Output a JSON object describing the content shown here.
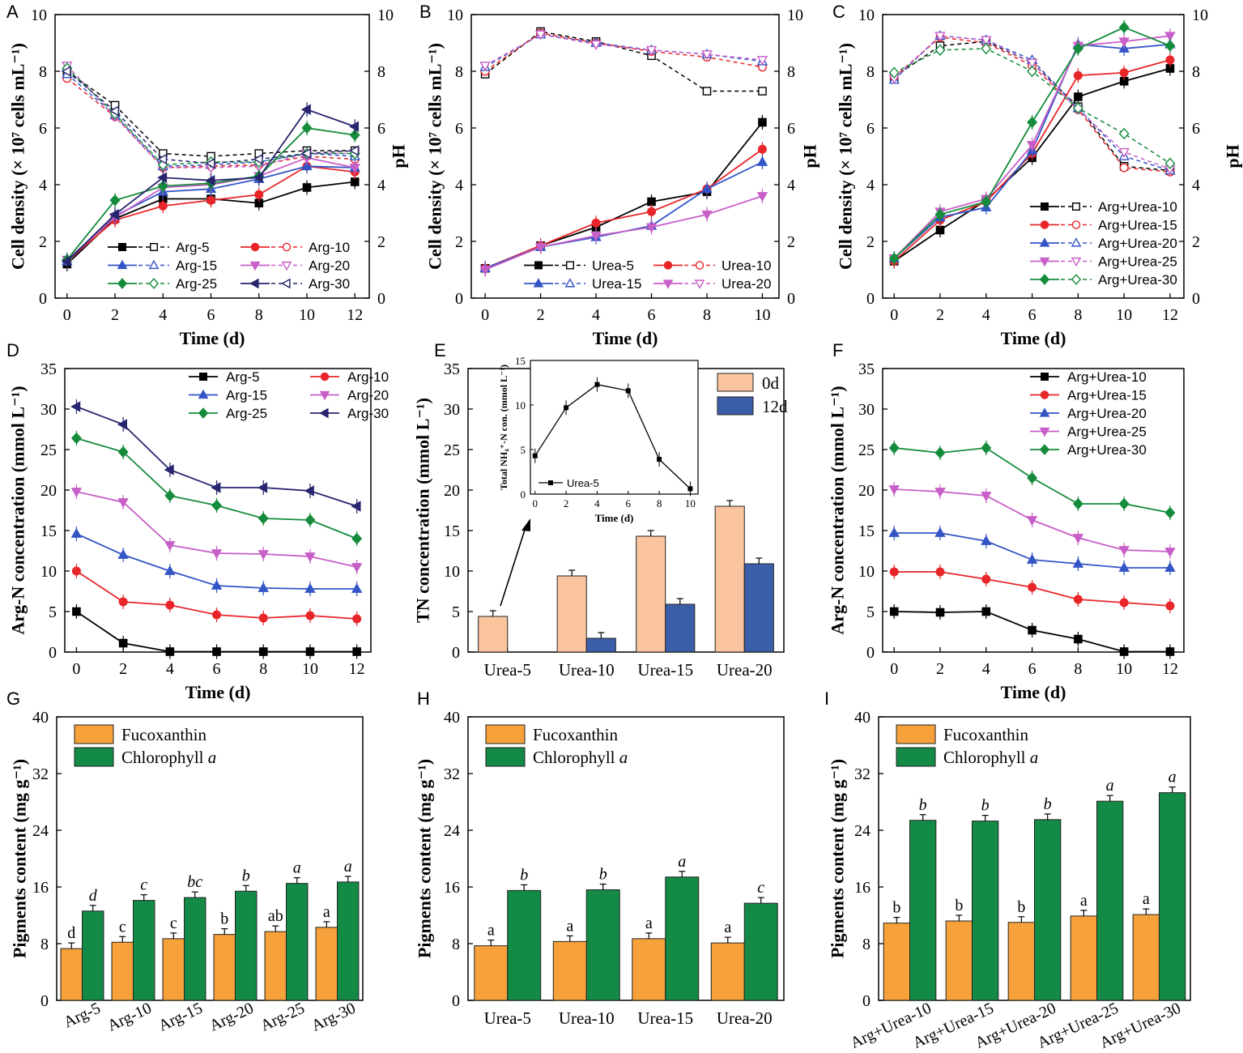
{
  "figure": {
    "colors": {
      "black": "#000000",
      "red": "#e8262a",
      "blue": "#3455c6",
      "magenta": "#c85fc8",
      "green": "#148c3c",
      "navy": "#26256e",
      "orange": "#f7a13a",
      "bargreen": "#138a45",
      "peach": "#f9c49e",
      "steelblue": "#3a5fa8"
    }
  },
  "chart_data": [
    {
      "id": "A",
      "panel_letter": "A",
      "type": "line",
      "ylabel": "Cell density (× 10⁷ cells mL⁻¹)",
      "y2label": "pH",
      "xlabel": "Time (d)",
      "ylim": [
        0,
        10
      ],
      "y2lim": [
        0,
        10
      ],
      "xlim": [
        -0.5,
        12.6
      ],
      "x": [
        0,
        2,
        4,
        6,
        8,
        10,
        12
      ],
      "legend": {
        "position": "bottom-right",
        "columns": 2
      },
      "series": [
        {
          "name": "Arg-5",
          "color": "black",
          "marker": "square",
          "cell": [
            1.2,
            2.8,
            3.5,
            3.5,
            3.35,
            3.9,
            4.1
          ],
          "ph": [
            8.0,
            6.8,
            5.1,
            5.0,
            5.1,
            5.2,
            5.2
          ]
        },
        {
          "name": "Arg-10",
          "color": "red",
          "marker": "circle",
          "cell": [
            1.3,
            2.75,
            3.25,
            3.45,
            3.65,
            4.65,
            4.45
          ],
          "ph": [
            7.75,
            6.4,
            4.6,
            4.65,
            4.7,
            5.0,
            4.9
          ]
        },
        {
          "name": "Arg-15",
          "color": "blue",
          "marker": "triangle-up",
          "cell": [
            1.3,
            2.9,
            3.75,
            3.85,
            4.2,
            4.65,
            4.6
          ],
          "ph": [
            7.9,
            6.45,
            4.65,
            4.7,
            4.8,
            5.1,
            5.0
          ]
        },
        {
          "name": "Arg-20",
          "color": "magenta",
          "marker": "triangle-down",
          "cell": [
            1.35,
            2.85,
            3.9,
            4.0,
            4.3,
            4.95,
            4.6
          ],
          "ph": [
            8.2,
            6.4,
            4.6,
            4.6,
            4.65,
            5.1,
            5.1
          ]
        },
        {
          "name": "Arg-25",
          "color": "green",
          "marker": "diamond",
          "cell": [
            1.35,
            3.45,
            3.95,
            4.05,
            4.3,
            6.0,
            5.75
          ],
          "ph": [
            8.1,
            6.5,
            4.7,
            4.8,
            4.8,
            5.1,
            5.1
          ]
        },
        {
          "name": "Arg-30",
          "color": "navy",
          "marker": "triangle-left",
          "cell": [
            1.3,
            2.95,
            4.25,
            4.15,
            4.25,
            6.65,
            6.05
          ],
          "ph": [
            8.0,
            6.6,
            4.9,
            4.75,
            4.9,
            5.1,
            5.2
          ]
        }
      ]
    },
    {
      "id": "B",
      "panel_letter": "B",
      "type": "line",
      "ylabel": "Cell density (× 10⁷ cells mL⁻¹)",
      "y2label": "pH",
      "xlabel": "Time (d)",
      "ylim": [
        0,
        10
      ],
      "y2lim": [
        0,
        10
      ],
      "xlim": [
        -0.5,
        10.6
      ],
      "x": [
        0,
        2,
        4,
        6,
        8,
        10
      ],
      "legend": {
        "position": "bottom-right",
        "columns": 2
      },
      "series": [
        {
          "name": "Urea-5",
          "color": "black",
          "marker": "square",
          "cell": [
            1.05,
            1.85,
            2.5,
            3.4,
            3.75,
            6.2
          ],
          "ph": [
            7.9,
            9.4,
            9.05,
            8.55,
            7.3,
            7.3
          ]
        },
        {
          "name": "Urea-10",
          "color": "red",
          "marker": "circle",
          "cell": [
            1.05,
            1.85,
            2.65,
            3.05,
            3.85,
            5.25
          ],
          "ph": [
            8.0,
            9.35,
            9.0,
            8.7,
            8.5,
            8.15
          ]
        },
        {
          "name": "Urea-15",
          "color": "blue",
          "marker": "triangle-up",
          "cell": [
            1.05,
            1.8,
            2.15,
            2.55,
            3.85,
            4.8
          ],
          "ph": [
            8.15,
            9.3,
            9.0,
            8.75,
            8.6,
            8.35
          ]
        },
        {
          "name": "Urea-20",
          "color": "magenta",
          "marker": "triangle-down",
          "cell": [
            1.0,
            1.8,
            2.2,
            2.5,
            2.95,
            3.6
          ],
          "ph": [
            8.2,
            9.3,
            8.95,
            8.75,
            8.6,
            8.4
          ]
        }
      ]
    },
    {
      "id": "C",
      "panel_letter": "C",
      "type": "line",
      "ylabel": "Cell density (× 10⁷ cells mL⁻¹)",
      "y2label": "pH",
      "xlabel": "Time (d)",
      "ylim": [
        0,
        10
      ],
      "y2lim": [
        0,
        10
      ],
      "xlim": [
        -0.5,
        12.6
      ],
      "x": [
        0,
        2,
        4,
        6,
        8,
        10,
        12
      ],
      "legend": {
        "position": "bottom-right",
        "columns": 1
      },
      "series": [
        {
          "name": "Arg+Urea-10",
          "color": "black",
          "marker": "square",
          "cell": [
            1.3,
            2.4,
            3.45,
            4.95,
            7.1,
            7.65,
            8.1
          ],
          "ph": [
            7.8,
            8.9,
            9.05,
            8.3,
            6.75,
            4.65,
            4.5
          ]
        },
        {
          "name": "Arg+Urea-15",
          "color": "red",
          "marker": "circle",
          "cell": [
            1.3,
            2.75,
            3.4,
            5.1,
            7.85,
            7.95,
            8.4
          ],
          "ph": [
            7.8,
            9.2,
            9.0,
            8.2,
            6.65,
            4.6,
            4.45
          ]
        },
        {
          "name": "Arg+Urea-20",
          "color": "blue",
          "marker": "triangle-up",
          "cell": [
            1.4,
            2.85,
            3.2,
            5.2,
            8.95,
            8.8,
            8.95
          ],
          "ph": [
            7.7,
            9.25,
            9.1,
            8.4,
            6.7,
            5.0,
            4.5
          ]
        },
        {
          "name": "Arg+Urea-25",
          "color": "magenta",
          "marker": "triangle-down",
          "cell": [
            1.4,
            3.05,
            3.5,
            5.4,
            8.9,
            9.05,
            9.25
          ],
          "ph": [
            7.75,
            9.25,
            9.1,
            8.3,
            6.65,
            5.15,
            4.55
          ]
        },
        {
          "name": "Arg+Urea-30",
          "color": "green",
          "marker": "diamond",
          "cell": [
            1.4,
            2.95,
            3.4,
            6.2,
            8.8,
            9.55,
            8.9
          ],
          "ph": [
            7.95,
            8.75,
            8.8,
            8.0,
            6.7,
            5.8,
            4.75
          ]
        }
      ]
    },
    {
      "id": "D",
      "panel_letter": "D",
      "type": "line",
      "ylabel": "Arg-N concentration (mmol L⁻¹)",
      "xlabel": "Time (d)",
      "ylim": [
        0,
        35
      ],
      "xlim": [
        -0.5,
        12.6
      ],
      "x": [
        0,
        2,
        4,
        6,
        8,
        10,
        12
      ],
      "legend": {
        "position": "top-right",
        "columns": 2
      },
      "series": [
        {
          "name": "Arg-5",
          "color": "black",
          "marker": "square",
          "values": [
            5.0,
            1.1,
            0.05,
            0.05,
            0.05,
            0.05,
            0.05
          ]
        },
        {
          "name": "Arg-10",
          "color": "red",
          "marker": "circle",
          "values": [
            10.0,
            6.2,
            5.8,
            4.6,
            4.2,
            4.5,
            4.1
          ]
        },
        {
          "name": "Arg-15",
          "color": "blue",
          "marker": "triangle-up",
          "values": [
            14.6,
            12.0,
            10.0,
            8.2,
            7.9,
            7.8,
            7.8
          ]
        },
        {
          "name": "Arg-20",
          "color": "magenta",
          "marker": "triangle-down",
          "values": [
            19.8,
            18.5,
            13.2,
            12.2,
            12.1,
            11.8,
            10.5
          ]
        },
        {
          "name": "Arg-25",
          "color": "green",
          "marker": "diamond",
          "values": [
            26.4,
            24.7,
            19.3,
            18.1,
            16.5,
            16.3,
            14.0
          ]
        },
        {
          "name": "Arg-30",
          "color": "navy",
          "marker": "triangle-left",
          "values": [
            30.3,
            28.1,
            22.5,
            20.3,
            20.3,
            19.9,
            18.0
          ]
        }
      ]
    },
    {
      "id": "E",
      "panel_letter": "E",
      "type": "bar",
      "ylabel": "TN concentration (mmol L⁻¹)",
      "ylim": [
        0,
        35
      ],
      "categories": [
        "Urea-5",
        "Urea-10",
        "Urea-15",
        "Urea-20"
      ],
      "legend": {
        "position": "top-right"
      },
      "series": [
        {
          "name": "0d",
          "color": "peach",
          "values": [
            4.4,
            9.4,
            14.3,
            18.0
          ]
        },
        {
          "name": "12d",
          "color": "steelblue",
          "values": [
            0,
            1.7,
            5.9,
            10.9
          ]
        }
      ],
      "inset": {
        "type": "line",
        "ylabel": "Total NH₄⁺-N con. (mmol L⁻¹)",
        "xlabel": "Time (d)",
        "ylim": [
          0,
          15
        ],
        "xlim": [
          -0.3,
          10.5
        ],
        "x": [
          0,
          2,
          4,
          6,
          8,
          10
        ],
        "series": [
          {
            "name": "Urea-5",
            "color": "black",
            "marker": "square",
            "values": [
              4.3,
              9.7,
              12.3,
              11.6,
              3.9,
              0.6
            ]
          }
        ]
      }
    },
    {
      "id": "F",
      "panel_letter": "F",
      "type": "line",
      "ylabel": "Arg-N concentration (mmol L⁻¹)",
      "xlabel": "Time (d)",
      "ylim": [
        0,
        35
      ],
      "xlim": [
        -0.5,
        12.6
      ],
      "x": [
        0,
        2,
        4,
        6,
        8,
        10,
        12
      ],
      "legend": {
        "position": "top-right",
        "columns": 1
      },
      "series": [
        {
          "name": "Arg+Urea-10",
          "color": "black",
          "marker": "square",
          "values": [
            5.0,
            4.9,
            5.0,
            2.7,
            1.6,
            0.05,
            0.05
          ]
        },
        {
          "name": "Arg+Urea-15",
          "color": "red",
          "marker": "circle",
          "values": [
            9.9,
            9.9,
            9.0,
            8.0,
            6.5,
            6.1,
            5.7
          ]
        },
        {
          "name": "Arg+Urea-20",
          "color": "blue",
          "marker": "triangle-up",
          "values": [
            14.7,
            14.7,
            13.7,
            11.4,
            10.9,
            10.4,
            10.4
          ]
        },
        {
          "name": "Arg+Urea-25",
          "color": "magenta",
          "marker": "triangle-down",
          "values": [
            20.1,
            19.8,
            19.3,
            16.3,
            14.1,
            12.6,
            12.4
          ]
        },
        {
          "name": "Arg+Urea-30",
          "color": "green",
          "marker": "diamond",
          "values": [
            25.2,
            24.6,
            25.2,
            21.5,
            18.3,
            18.3,
            17.2
          ]
        }
      ]
    },
    {
      "id": "G",
      "panel_letter": "G",
      "type": "bar",
      "ylabel": "Pigments content (mg g⁻¹)",
      "ylim": [
        0,
        40
      ],
      "yticks": [
        0,
        8,
        16,
        24,
        32,
        40
      ],
      "categories": [
        "Arg-5",
        "Arg-10",
        "Arg-15",
        "Arg-20",
        "Arg-25",
        "Arg-30"
      ],
      "rotate_labels": true,
      "legend": {
        "position": "top-left"
      },
      "series": [
        {
          "name": "Fucoxanthin",
          "color": "orange",
          "values": [
            7.3,
            8.2,
            8.7,
            9.3,
            9.7,
            10.3
          ],
          "letters": [
            "d",
            "c",
            "c",
            "b",
            "ab",
            "a"
          ]
        },
        {
          "name": "Chlorophyll a",
          "color": "bargreen",
          "values": [
            12.6,
            14.1,
            14.5,
            15.4,
            16.5,
            16.7
          ],
          "letters": [
            "d",
            "c",
            "bc",
            "b",
            "a",
            "a"
          ]
        }
      ]
    },
    {
      "id": "H",
      "panel_letter": "H",
      "type": "bar",
      "ylabel": "Pigments content (mg g⁻¹)",
      "ylim": [
        0,
        40
      ],
      "yticks": [
        0,
        8,
        16,
        24,
        32,
        40
      ],
      "categories": [
        "Urea-5",
        "Urea-10",
        "Urea-15",
        "Urea-20"
      ],
      "rotate_labels": false,
      "legend": {
        "position": "top-left"
      },
      "series": [
        {
          "name": "Fucoxanthin",
          "color": "orange",
          "values": [
            7.7,
            8.3,
            8.7,
            8.1
          ],
          "letters": [
            "a",
            "a",
            "a",
            "a"
          ]
        },
        {
          "name": "Chlorophyll a",
          "color": "bargreen",
          "values": [
            15.5,
            15.6,
            17.4,
            13.7
          ],
          "letters": [
            "b",
            "b",
            "a",
            "c"
          ]
        }
      ]
    },
    {
      "id": "I",
      "panel_letter": "I",
      "type": "bar",
      "ylabel": "Pigments content (mg g⁻¹)",
      "ylim": [
        0,
        40
      ],
      "yticks": [
        0,
        8,
        16,
        24,
        32,
        40
      ],
      "categories": [
        "Arg+Urea-10",
        "Arg+Urea-15",
        "Arg+Urea-20",
        "Arg+Urea-25",
        "Arg+Urea-30"
      ],
      "rotate_labels": true,
      "legend": {
        "position": "top-left"
      },
      "series": [
        {
          "name": "Fucoxanthin",
          "color": "orange",
          "values": [
            10.9,
            11.2,
            11.0,
            11.9,
            12.1
          ],
          "letters": [
            "b",
            "b",
            "b",
            "a",
            "a"
          ]
        },
        {
          "name": "Chlorophyll a",
          "color": "bargreen",
          "values": [
            25.4,
            25.3,
            25.5,
            28.1,
            29.3
          ],
          "letters": [
            "b",
            "b",
            "b",
            "a",
            "a"
          ]
        }
      ]
    }
  ]
}
